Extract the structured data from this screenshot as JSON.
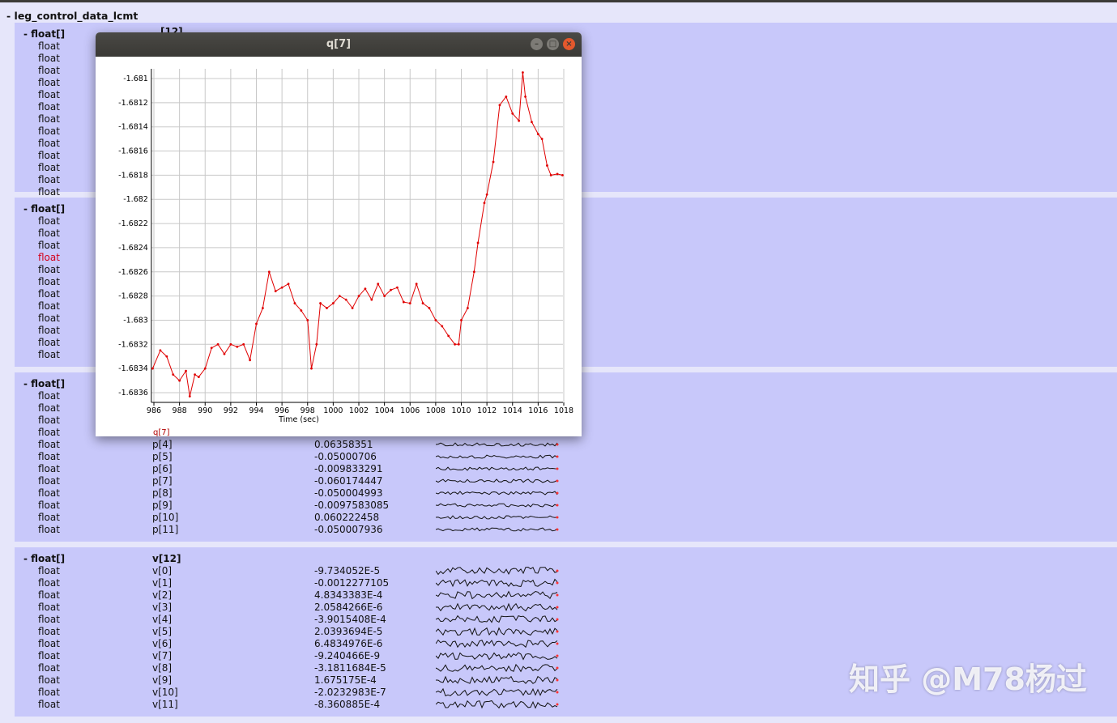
{
  "root": {
    "label": "- leg_control_data_lcmt"
  },
  "sections": [
    {
      "type": "- float[]",
      "name": "[12]",
      "rows": 13,
      "visible_rows": []
    },
    {
      "type": "- float[]",
      "name": "",
      "rows": 12,
      "highlight_row": 3
    },
    {
      "type": "- float[]",
      "name": "",
      "rows": 12,
      "items": [
        {
          "i": 4,
          "name": "p[4]",
          "value": "0.06358351"
        },
        {
          "i": 5,
          "name": "p[5]",
          "value": "-0.05000706"
        },
        {
          "i": 6,
          "name": "p[6]",
          "value": "-0.009833291"
        },
        {
          "i": 7,
          "name": "p[7]",
          "value": "-0.060174447"
        },
        {
          "i": 8,
          "name": "p[8]",
          "value": "-0.050004993"
        },
        {
          "i": 9,
          "name": "p[9]",
          "value": "-0.0097583085"
        },
        {
          "i": 10,
          "name": "p[10]",
          "value": "0.060222458"
        },
        {
          "i": 11,
          "name": "p[11]",
          "value": "-0.050007936"
        }
      ]
    },
    {
      "type": "- float[]",
      "name": "v[12]",
      "rows": 12,
      "items": [
        {
          "i": 0,
          "name": "v[0]",
          "value": "-9.734052E-5"
        },
        {
          "i": 1,
          "name": "v[1]",
          "value": "-0.0012277105"
        },
        {
          "i": 2,
          "name": "v[2]",
          "value": "4.8343383E-4"
        },
        {
          "i": 3,
          "name": "v[3]",
          "value": "2.0584266E-6"
        },
        {
          "i": 4,
          "name": "v[4]",
          "value": "-3.9015408E-4"
        },
        {
          "i": 5,
          "name": "v[5]",
          "value": "2.0393694E-5"
        },
        {
          "i": 6,
          "name": "v[6]",
          "value": "6.4834976E-6"
        },
        {
          "i": 7,
          "name": "v[7]",
          "value": "-9.240466E-9"
        },
        {
          "i": 8,
          "name": "v[8]",
          "value": "-3.1811684E-5"
        },
        {
          "i": 9,
          "name": "v[9]",
          "value": "1.675175E-4"
        },
        {
          "i": 10,
          "name": "v[10]",
          "value": "-2.0232983E-7"
        },
        {
          "i": 11,
          "name": "v[11]",
          "value": "-8.360885E-4"
        }
      ]
    }
  ],
  "row_type": "float",
  "plot_window": {
    "title": "q[7]",
    "minimize": "–",
    "maximize": "□",
    "close": "×"
  },
  "chart_data": {
    "type": "line",
    "title": "",
    "xlabel": "Time (sec)",
    "ylabel": "",
    "xlim": [
      985.8,
      1018.2
    ],
    "ylim": [
      -1.68365,
      -1.68093
    ],
    "xticks": [
      986,
      988,
      990,
      992,
      994,
      996,
      998,
      1000,
      1002,
      1004,
      1006,
      1008,
      1010,
      1012,
      1014,
      1016,
      1018
    ],
    "yticks": [
      -1.681,
      -1.6812,
      -1.6814,
      -1.6816,
      -1.6818,
      -1.682,
      -1.6822,
      -1.6824,
      -1.6826,
      -1.6828,
      -1.683,
      -1.6832,
      -1.6834,
      -1.6836
    ],
    "ytick_labels": [
      "-1.681",
      "-1.6812",
      "-1.6814",
      "-1.6816",
      "-1.6818",
      "-1.682",
      "-1.6822",
      "-1.6824",
      "-1.6826",
      "-1.6828",
      "-1.683",
      "-1.6832",
      "-1.6834",
      "-1.6836"
    ],
    "grid": true,
    "legend": "bottom-left",
    "series": [
      {
        "name": "q[7]",
        "color": "#e00000",
        "x": [
          985.9,
          986.5,
          987,
          987.5,
          988,
          988.5,
          988.8,
          989.2,
          989.5,
          990,
          990.5,
          991,
          991.5,
          992,
          992.5,
          993,
          993.5,
          994,
          994.5,
          995,
          995.5,
          996,
          996.5,
          997,
          997.5,
          998,
          998.3,
          998.7,
          999,
          999.5,
          1000,
          1000.5,
          1001,
          1001.5,
          1002,
          1002.5,
          1003,
          1003.5,
          1004,
          1004.5,
          1005,
          1005.5,
          1006,
          1006.5,
          1007,
          1007.5,
          1008,
          1008.5,
          1009,
          1009.5,
          1009.8,
          1010,
          1010.5,
          1011,
          1011.3,
          1011.8,
          1012,
          1012.5,
          1013,
          1013.5,
          1014,
          1014.5,
          1014.8,
          1015,
          1015.5,
          1016,
          1016.3,
          1016.7,
          1017,
          1017.5,
          1017.9
        ],
        "y": [
          -1.6834,
          -1.68325,
          -1.6833,
          -1.68345,
          -1.6835,
          -1.68342,
          -1.68363,
          -1.68345,
          -1.68347,
          -1.6834,
          -1.68323,
          -1.6832,
          -1.68328,
          -1.6832,
          -1.68322,
          -1.6832,
          -1.68333,
          -1.68303,
          -1.6829,
          -1.6826,
          -1.68276,
          -1.68273,
          -1.6827,
          -1.68286,
          -1.68292,
          -1.683,
          -1.6834,
          -1.6832,
          -1.68286,
          -1.6829,
          -1.68286,
          -1.6828,
          -1.68283,
          -1.6829,
          -1.6828,
          -1.68274,
          -1.68283,
          -1.6827,
          -1.6828,
          -1.68275,
          -1.68273,
          -1.68285,
          -1.68286,
          -1.6827,
          -1.68286,
          -1.6829,
          -1.683,
          -1.68305,
          -1.68313,
          -1.6832,
          -1.6832,
          -1.683,
          -1.6829,
          -1.6826,
          -1.68236,
          -1.68203,
          -1.68196,
          -1.68169,
          -1.68122,
          -1.68115,
          -1.68129,
          -1.68135,
          -1.68095,
          -1.68115,
          -1.68136,
          -1.68146,
          -1.6815,
          -1.68172,
          -1.6818,
          -1.68179,
          -1.6818
        ]
      }
    ]
  },
  "watermark": "知乎 @M78杨过"
}
